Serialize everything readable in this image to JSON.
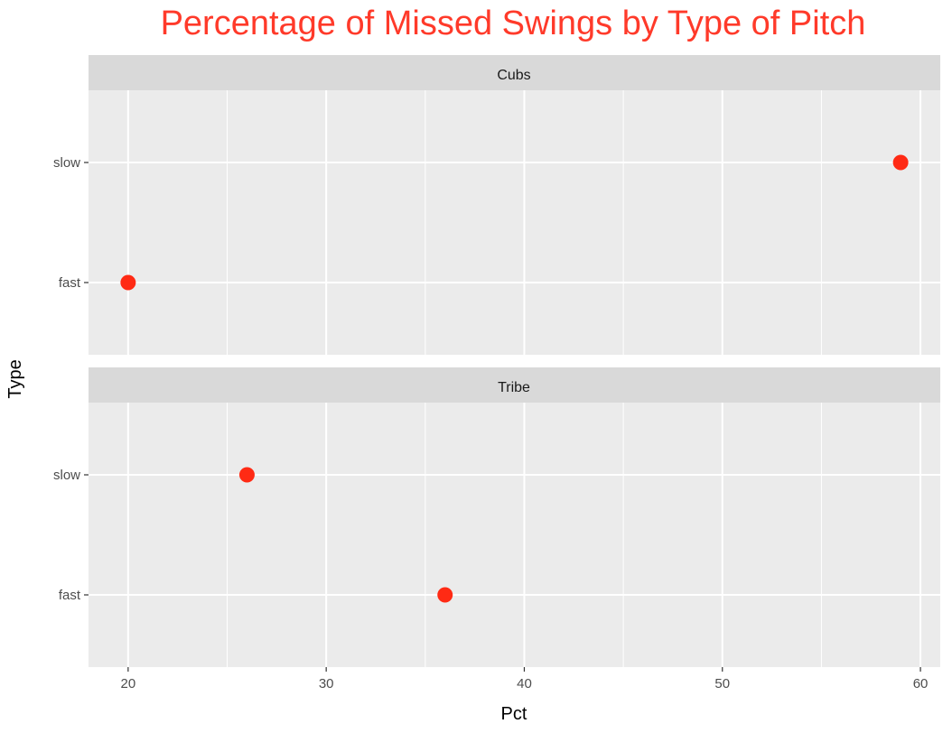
{
  "chart_data": {
    "type": "scatter",
    "title": "Percentage of Missed Swings by Type of Pitch",
    "xlabel": "Pct",
    "ylabel": "Type",
    "xlim": [
      18,
      61
    ],
    "x_ticks": [
      20,
      30,
      40,
      50,
      60
    ],
    "y_categories": [
      "fast",
      "slow"
    ],
    "grid": true,
    "legend": "none",
    "colors": {
      "title": "#ff3a2a",
      "point": "#ff2a14",
      "panel_bg": "#ebebeb",
      "strip_bg": "#d9d9d9",
      "grid": "#ffffff"
    },
    "panels": [
      {
        "label": "Cubs",
        "points": [
          {
            "type": "slow",
            "pct": 59
          },
          {
            "type": "fast",
            "pct": 20
          }
        ]
      },
      {
        "label": "Tribe",
        "points": [
          {
            "type": "slow",
            "pct": 26
          },
          {
            "type": "fast",
            "pct": 36
          }
        ]
      }
    ]
  }
}
